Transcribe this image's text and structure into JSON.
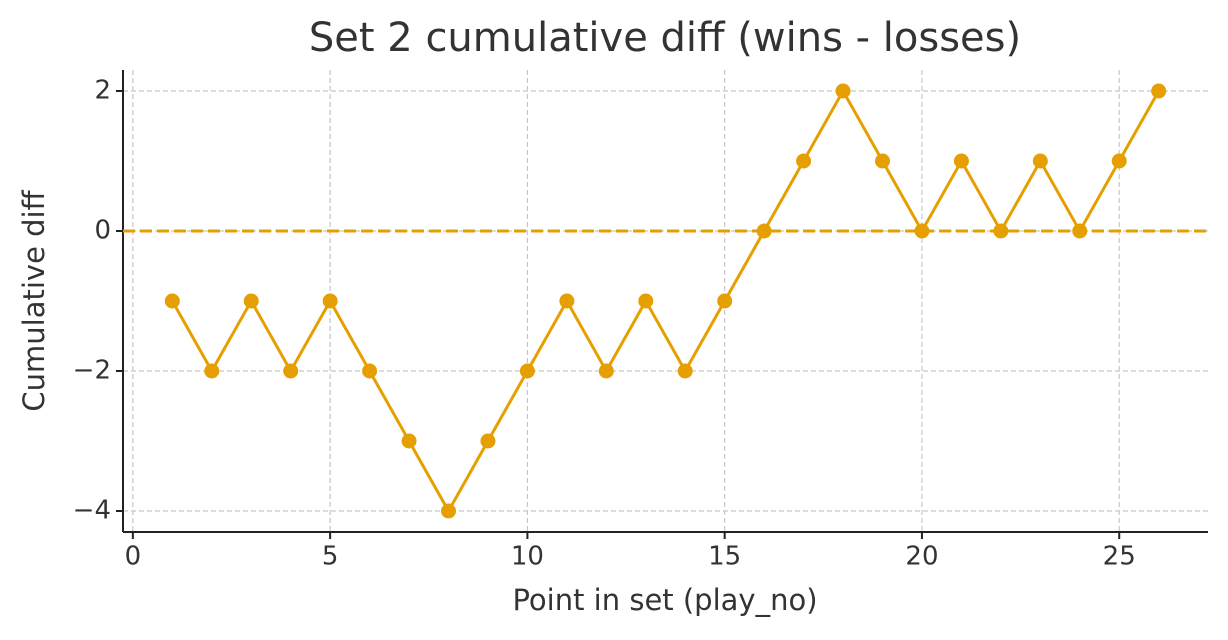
{
  "chart_data": {
    "type": "line",
    "title": "Set 2 cumulative diff (wins - losses)",
    "xlabel": "Point in set (play_no)",
    "ylabel": "Cumulative diff",
    "x": [
      1,
      2,
      3,
      4,
      5,
      6,
      7,
      8,
      9,
      10,
      11,
      12,
      13,
      14,
      15,
      16,
      17,
      18,
      19,
      20,
      21,
      22,
      23,
      24,
      25,
      26
    ],
    "series": [
      {
        "name": "Cumulative diff",
        "color": "#E69F00",
        "values": [
          -1,
          -2,
          -1,
          -2,
          -1,
          -2,
          -3,
          -4,
          -3,
          -2,
          -1,
          -2,
          -1,
          -2,
          -1,
          0,
          1,
          2,
          1,
          0,
          1,
          0,
          1,
          0,
          1,
          2
        ]
      }
    ],
    "hline": 0,
    "xlim": [
      -0.25,
      27.25
    ],
    "ylim": [
      -4.3,
      2.3
    ],
    "xticks": [
      0,
      5,
      10,
      15,
      20,
      25
    ],
    "yticks": [
      {
        "value": -4,
        "label": "−4"
      },
      {
        "value": -2,
        "label": "−2"
      },
      0,
      2
    ],
    "grid": true
  }
}
